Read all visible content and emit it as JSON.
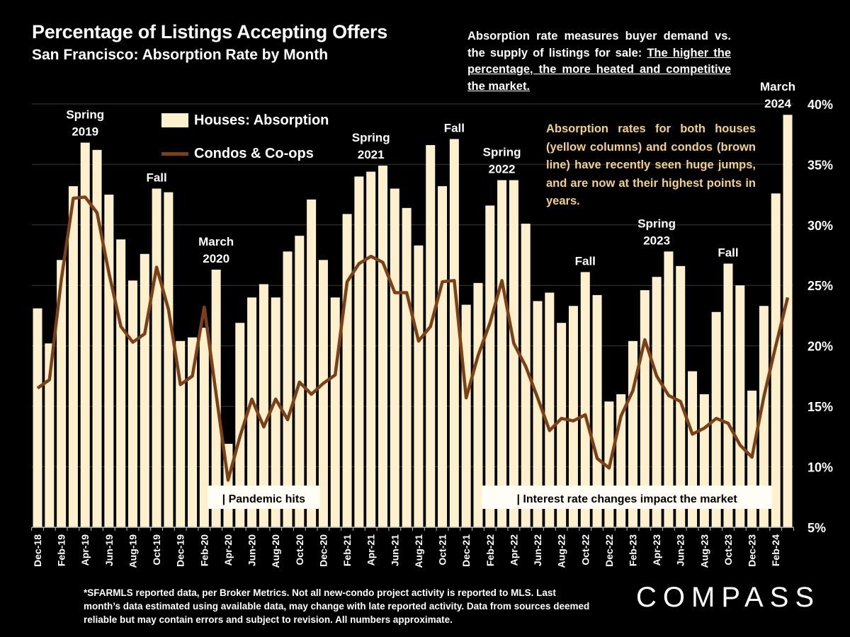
{
  "title": "Percentage of Listings Accepting Offers",
  "subtitle": "San Francisco:  Absorption Rate by Month",
  "note": {
    "text_plain": "Absorption rate measures buyer demand vs. the supply of listings for sale: ",
    "text_underlined": "The higher the percentage, the more heated and competitive the market."
  },
  "note2": "Absorption rates for both houses (yellow columns) and condos (brown line) have recently seen huge jumps, and are now at their  highest points in years.",
  "footer": "*SFARMLS reported data, per Broker Metrics. Not all new-condo project activity is reported to MLS. Last month’s data estimated using available data, may change with late reported activity. Data from sources deemed reliable but may contain errors and subject to revision. All numbers approximate.",
  "logo": "COMPASS",
  "colors": {
    "background": "#000000",
    "bars": "#fdf0cc",
    "line": "#7d3f14",
    "note2": "#f3d27e"
  },
  "chart_data": {
    "type": "bar+line",
    "ylim": [
      5,
      40
    ],
    "yticks": [
      "5%",
      "10%",
      "15%",
      "20%",
      "25%",
      "30%",
      "35%",
      "40%"
    ],
    "yaxis_position": "right",
    "grid": true,
    "legend_placement": "top-left",
    "categories": [
      "Dec-18",
      "Jan-19",
      "Feb-19",
      "Mar-19",
      "Apr-19",
      "May-19",
      "Jun-19",
      "Jul-19",
      "Aug-19",
      "Sep-19",
      "Oct-19",
      "Nov-19",
      "Dec-19",
      "Jan-20",
      "Feb-20",
      "Mar-20",
      "Apr-20",
      "May-20",
      "Jun-20",
      "Jul-20",
      "Aug-20",
      "Sep-20",
      "Oct-20",
      "Nov-20",
      "Dec-20",
      "Jan-21",
      "Feb-21",
      "Mar-21",
      "Apr-21",
      "May-21",
      "Jun-21",
      "Jul-21",
      "Aug-21",
      "Sep-21",
      "Oct-21",
      "Nov-21",
      "Dec-21",
      "Jan-22",
      "Feb-22",
      "Mar-22",
      "Apr-22",
      "May-22",
      "Jun-22",
      "Jul-22",
      "Aug-22",
      "Sep-22",
      "Oct-22",
      "Nov-22",
      "Dec-22",
      "Jan-23",
      "Feb-23",
      "Mar-23",
      "Apr-23",
      "May-23",
      "Jun-23",
      "Jul-23",
      "Aug-23",
      "Sep-23",
      "Oct-23",
      "Nov-23",
      "Dec-23",
      "Jan-24",
      "Feb-24",
      "Mar-24"
    ],
    "xtick_labels": [
      "Dec-18",
      "Feb-19",
      "Apr-19",
      "Jun-19",
      "Aug-19",
      "Oct-19",
      "Dec-19",
      "Feb-20",
      "Apr-20",
      "Jun-20",
      "Aug-20",
      "Oct-20",
      "Dec-20",
      "Feb-21",
      "Apr-21",
      "Jun-21",
      "Aug-21",
      "Oct-21",
      "Dec-21",
      "Feb-22",
      "Apr-22",
      "Jun-22",
      "Aug-22",
      "Oct-22",
      "Dec-22",
      "Feb-23",
      "Apr-23",
      "Jun-23",
      "Aug-23",
      "Oct-23",
      "Dec-23",
      "Feb-24"
    ],
    "series": [
      {
        "name": "Houses: Absorption",
        "type": "bar",
        "values": [
          23.1,
          20.2,
          27.1,
          33.2,
          36.8,
          36.2,
          32.5,
          28.8,
          25.4,
          27.6,
          33.0,
          32.7,
          20.4,
          20.7,
          21.5,
          26.3,
          11.9,
          21.9,
          24.0,
          25.1,
          24.0,
          27.8,
          29.1,
          32.1,
          27.1,
          24.0,
          30.9,
          34.0,
          34.4,
          34.9,
          33.0,
          31.4,
          28.3,
          36.6,
          33.2,
          37.1,
          23.4,
          25.2,
          31.6,
          33.7,
          33.7,
          30.1,
          23.7,
          24.4,
          21.9,
          23.3,
          26.1,
          24.2,
          15.4,
          16.0,
          20.4,
          24.6,
          25.7,
          27.8,
          26.6,
          17.9,
          16.0,
          22.8,
          26.8,
          25.0,
          16.3,
          23.3,
          32.6,
          39.1
        ]
      },
      {
        "name": "Condos & Co-ops",
        "type": "line",
        "values": [
          16.5,
          17.2,
          25.5,
          32.2,
          32.3,
          31.0,
          26.0,
          21.6,
          20.3,
          21.0,
          26.5,
          23.0,
          16.8,
          17.5,
          23.2,
          16.0,
          8.9,
          12.5,
          15.6,
          13.3,
          15.6,
          13.9,
          17.0,
          16.0,
          16.9,
          17.6,
          25.3,
          26.8,
          27.4,
          26.9,
          24.4,
          24.4,
          20.4,
          21.6,
          25.3,
          25.4,
          15.7,
          19.2,
          21.9,
          25.4,
          20.2,
          18.3,
          15.7,
          13.0,
          14.0,
          13.8,
          14.3,
          10.7,
          9.9,
          14.2,
          16.3,
          20.5,
          17.5,
          15.9,
          15.4,
          12.7,
          13.2,
          14.0,
          13.6,
          11.8,
          10.8,
          15.8,
          20.0,
          24.0
        ]
      }
    ],
    "annotations": [
      {
        "month": "Apr-19",
        "lines": [
          "Spring",
          "2019"
        ]
      },
      {
        "month": "Oct-19",
        "lines": [
          "Fall"
        ]
      },
      {
        "month": "Mar-20",
        "lines": [
          "March",
          "2020"
        ]
      },
      {
        "month": "Apr-21",
        "lines": [
          "Spring",
          "2021"
        ]
      },
      {
        "month": "Nov-21",
        "lines": [
          "Fall"
        ]
      },
      {
        "month": "Mar-22",
        "lines": [
          "Spring",
          "2022"
        ]
      },
      {
        "month": "Oct-22",
        "lines": [
          "Fall"
        ]
      },
      {
        "month": "Apr-23",
        "lines": [
          "Spring",
          "2023"
        ]
      },
      {
        "month": "Oct-23",
        "lines": [
          "Fall"
        ]
      },
      {
        "month": "Mar-24",
        "lines": [
          "March",
          "2024"
        ]
      }
    ],
    "event_labels": [
      {
        "from": "Mar-20",
        "to": "Nov-20",
        "text": "| Pandemic hits"
      },
      {
        "from": "Feb-22",
        "to": "Jan-24",
        "text": "| Interest rate changes impact the market"
      }
    ]
  }
}
